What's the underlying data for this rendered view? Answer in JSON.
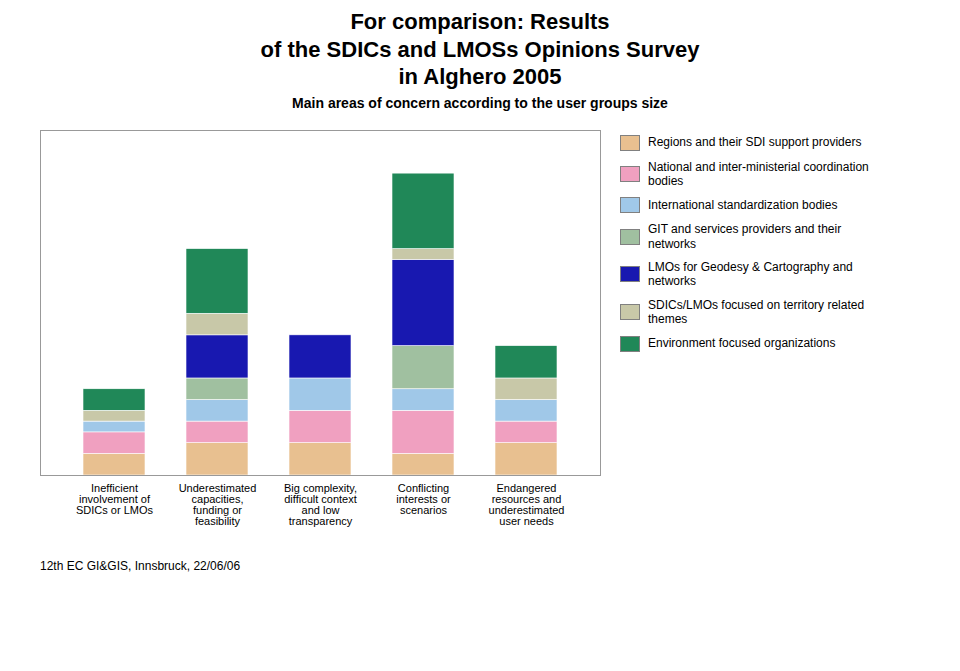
{
  "chart_data": {
    "type": "bar",
    "stacked": true,
    "title": "For comparison: Results\nof the SDICs and LMOSs Opinions Survey\nin Alghero 2005",
    "subtitle": "Main areas of concern according to the user groups size",
    "caption": "12th EC GI&GIS, Innsbruck, 22/06/06",
    "categories": [
      "Inefficient\ninvolvement of\nSDICs or LMOs",
      "Underestimated\ncapacities,\nfunding or\nfeasibility",
      "Big complexity,\ndifficult context\nand low\ntransparency",
      "Conflicting\ninterests or\nscenarios",
      "Endangered\nresources and\nunderestimated\nuser needs"
    ],
    "series": [
      {
        "name": "Regions and their SDI support providers",
        "color": "#E8C090",
        "values": [
          2,
          3,
          3,
          2,
          3
        ]
      },
      {
        "name": "National and inter-ministerial coordination\nbodies",
        "color": "#F0A0C0",
        "values": [
          2,
          2,
          3,
          4,
          2
        ]
      },
      {
        "name": "International standardization bodies",
        "color": "#A0C8E8",
        "values": [
          1,
          2,
          3,
          2,
          2
        ]
      },
      {
        "name": "GIT and services providers and their\nnetworks",
        "color": "#A0C0A0",
        "values": [
          0,
          2,
          0,
          4,
          0
        ]
      },
      {
        "name": "LMOs for Geodesy & Cartography and\nnetworks",
        "color": "#1818B0",
        "values": [
          0,
          4,
          4,
          8,
          0
        ]
      },
      {
        "name": "SDICs/LMOs focused on territory related\nthemes",
        "color": "#C8C8A8",
        "values": [
          1,
          2,
          0,
          1,
          2
        ]
      },
      {
        "name": "Environment focused organizations",
        "color": "#208858",
        "values": [
          2,
          6,
          0,
          7,
          3
        ]
      }
    ],
    "ylim": [
      0,
      32
    ],
    "tick_labels": "x",
    "grid": false,
    "legend": "right"
  }
}
